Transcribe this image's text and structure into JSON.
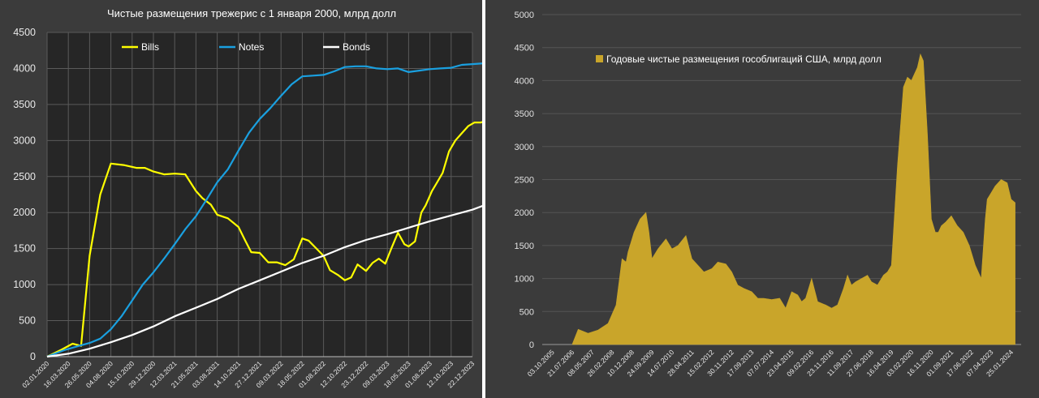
{
  "chart_data": [
    {
      "type": "line",
      "title": "Чистые размещения трежерис с 1 января 2000, млрд долл",
      "ylim": [
        0,
        4500
      ],
      "yticks": [
        "0",
        "500",
        "1000",
        "1500",
        "2000",
        "2500",
        "3000",
        "3500",
        "4000",
        "4500"
      ],
      "xticks": [
        "02.01.2020",
        "16.03.2020",
        "26.05.2020",
        "04.08.2020",
        "15.10.2020",
        "29.12.2020",
        "12.03.2021",
        "21.05.2021",
        "03.08.2021",
        "14.10.2021",
        "27.12.2021",
        "09.03.2022",
        "18.05.2022",
        "01.08.2022",
        "12.10.2022",
        "23.12.2022",
        "09.03.2023",
        "18.05.2023",
        "01.08.2023",
        "12.10.2023",
        "22.12.2023"
      ],
      "grid": true,
      "legend_position": "top",
      "series": [
        {
          "name": "Bills",
          "color": "#ffff00",
          "x": [
            0,
            0.7,
            1.2,
            1.6,
            2.0,
            2.5,
            3.0,
            3.6,
            4.2,
            4.6,
            5.0,
            5.5,
            6.0,
            6.5,
            7.0,
            7.3,
            7.7,
            8.0,
            8.5,
            9.0,
            9.3,
            9.6,
            10.0,
            10.4,
            10.8,
            11.2,
            11.6,
            12.0,
            12.3,
            12.6,
            13.0,
            13.3,
            13.7,
            14.0,
            14.3,
            14.6,
            15.0,
            15.3,
            15.6,
            15.9,
            16.2,
            16.5,
            16.8,
            17.0,
            17.3,
            17.6,
            17.8,
            18.1,
            18.3,
            18.6,
            18.9,
            19.2,
            19.5,
            19.8,
            20.1,
            20.4,
            20.6,
            20.8,
            21.0
          ],
          "values": [
            0,
            100,
            180,
            150,
            1400,
            2250,
            2680,
            2660,
            2620,
            2620,
            2570,
            2530,
            2540,
            2530,
            2300,
            2200,
            2110,
            1970,
            1920,
            1800,
            1620,
            1450,
            1440,
            1310,
            1310,
            1270,
            1350,
            1640,
            1610,
            1520,
            1400,
            1200,
            1130,
            1060,
            1100,
            1280,
            1190,
            1300,
            1360,
            1290,
            1510,
            1720,
            1560,
            1530,
            1600,
            2000,
            2100,
            2300,
            2400,
            2550,
            2850,
            3000,
            3100,
            3200,
            3250,
            3250,
            3270,
            3400,
            3580
          ]
        },
        {
          "name": "Notes",
          "color": "#1aa0e0",
          "x": [
            0,
            0.8,
            1.5,
            2.0,
            2.5,
            3.0,
            3.5,
            4.0,
            4.5,
            5.0,
            5.5,
            6.0,
            6.5,
            7.0,
            7.5,
            8.0,
            8.5,
            9.0,
            9.5,
            10.0,
            10.5,
            11.0,
            11.5,
            12.0,
            12.5,
            13.0,
            13.5,
            14.0,
            14.5,
            15.0,
            15.5,
            16.0,
            16.5,
            17.0,
            17.5,
            18.0,
            18.5,
            19.0,
            19.5,
            20.0,
            20.5,
            21.0
          ],
          "values": [
            0,
            90,
            150,
            190,
            250,
            380,
            560,
            780,
            1000,
            1170,
            1360,
            1560,
            1770,
            1950,
            2180,
            2420,
            2600,
            2860,
            3110,
            3300,
            3450,
            3620,
            3780,
            3890,
            3900,
            3910,
            3960,
            4020,
            4030,
            4030,
            4000,
            3990,
            4000,
            3950,
            3970,
            3990,
            4000,
            4010,
            4050,
            4060,
            4070,
            4100
          ]
        },
        {
          "name": "Bonds",
          "color": "#ffffff",
          "x": [
            0,
            1,
            2,
            3,
            4,
            5,
            6,
            7,
            8,
            9,
            10,
            11,
            12,
            13,
            14,
            15,
            16,
            17,
            18,
            19,
            20,
            21
          ],
          "values": [
            0,
            40,
            110,
            200,
            300,
            420,
            560,
            680,
            800,
            940,
            1060,
            1180,
            1300,
            1400,
            1520,
            1620,
            1700,
            1790,
            1880,
            1960,
            2040,
            2150
          ]
        }
      ]
    },
    {
      "type": "area",
      "title": "",
      "ylim": [
        0,
        5000
      ],
      "yticks": [
        "0",
        "500",
        "1000",
        "1500",
        "2000",
        "2500",
        "3000",
        "3500",
        "4000",
        "4500",
        "5000"
      ],
      "xticks": [
        "03.10.2005",
        "21.07.2006",
        "08.05.2007",
        "26.02.2008",
        "10.12.2008",
        "24.09.2009",
        "14.07.2010",
        "28.04.2011",
        "15.02.2012",
        "30.11.2012",
        "17.09.2013",
        "07.07.2014",
        "23.04.2015",
        "09.02.2016",
        "23.11.2016",
        "11.09.2017",
        "27.06.2018",
        "16.04.2019",
        "03.02.2020",
        "16.11.2020",
        "01.09.2021",
        "17.06.2022",
        "07.04.2023",
        "25.01.2024"
      ],
      "grid": true,
      "color": "#c9a52a",
      "legend_position": "top-left",
      "series": [
        {
          "name": "Годовые чистые размещения гособлигаций США, млрд долл",
          "x": [
            1.0,
            1.3,
            1.8,
            2.3,
            2.8,
            3.2,
            3.5,
            3.7,
            3.8,
            4.1,
            4.4,
            4.7,
            4.85,
            5.0,
            5.3,
            5.7,
            6.0,
            6.3,
            6.7,
            7.0,
            7.3,
            7.6,
            8.0,
            8.3,
            8.7,
            9.0,
            9.3,
            9.6,
            10.0,
            10.3,
            10.6,
            11.0,
            11.4,
            11.7,
            12.0,
            12.3,
            12.5,
            12.7,
            13.0,
            13.3,
            13.7,
            14.0,
            14.3,
            14.6,
            14.8,
            15.0,
            15.2,
            15.5,
            15.8,
            16.0,
            16.3,
            16.6,
            16.8,
            17.0,
            17.3,
            17.6,
            17.8,
            18.0,
            18.3,
            18.45,
            18.6,
            18.8,
            19.0,
            19.2,
            19.35,
            19.5,
            19.7,
            20.0,
            20.3,
            20.6,
            20.9,
            21.2,
            21.5,
            21.7,
            21.8,
            22.0,
            22.2,
            22.5,
            22.8,
            23.0,
            23.2
          ],
          "values": [
            0,
            230,
            170,
            220,
            320,
            600,
            1300,
            1250,
            1400,
            1700,
            1900,
            2000,
            1700,
            1300,
            1450,
            1600,
            1450,
            1500,
            1650,
            1300,
            1200,
            1100,
            1150,
            1250,
            1220,
            1100,
            900,
            850,
            800,
            700,
            700,
            680,
            700,
            550,
            800,
            750,
            650,
            700,
            1000,
            650,
            600,
            550,
            600,
            850,
            1050,
            900,
            950,
            1000,
            1050,
            950,
            900,
            1050,
            1100,
            1200,
            2700,
            3900,
            4050,
            4000,
            4200,
            4400,
            4300,
            3200,
            1900,
            1700,
            1700,
            1800,
            1850,
            1950,
            1800,
            1700,
            1500,
            1200,
            1000,
            1900,
            2200,
            2300,
            2400,
            2500,
            2450,
            2200,
            2150
          ]
        }
      ]
    }
  ]
}
